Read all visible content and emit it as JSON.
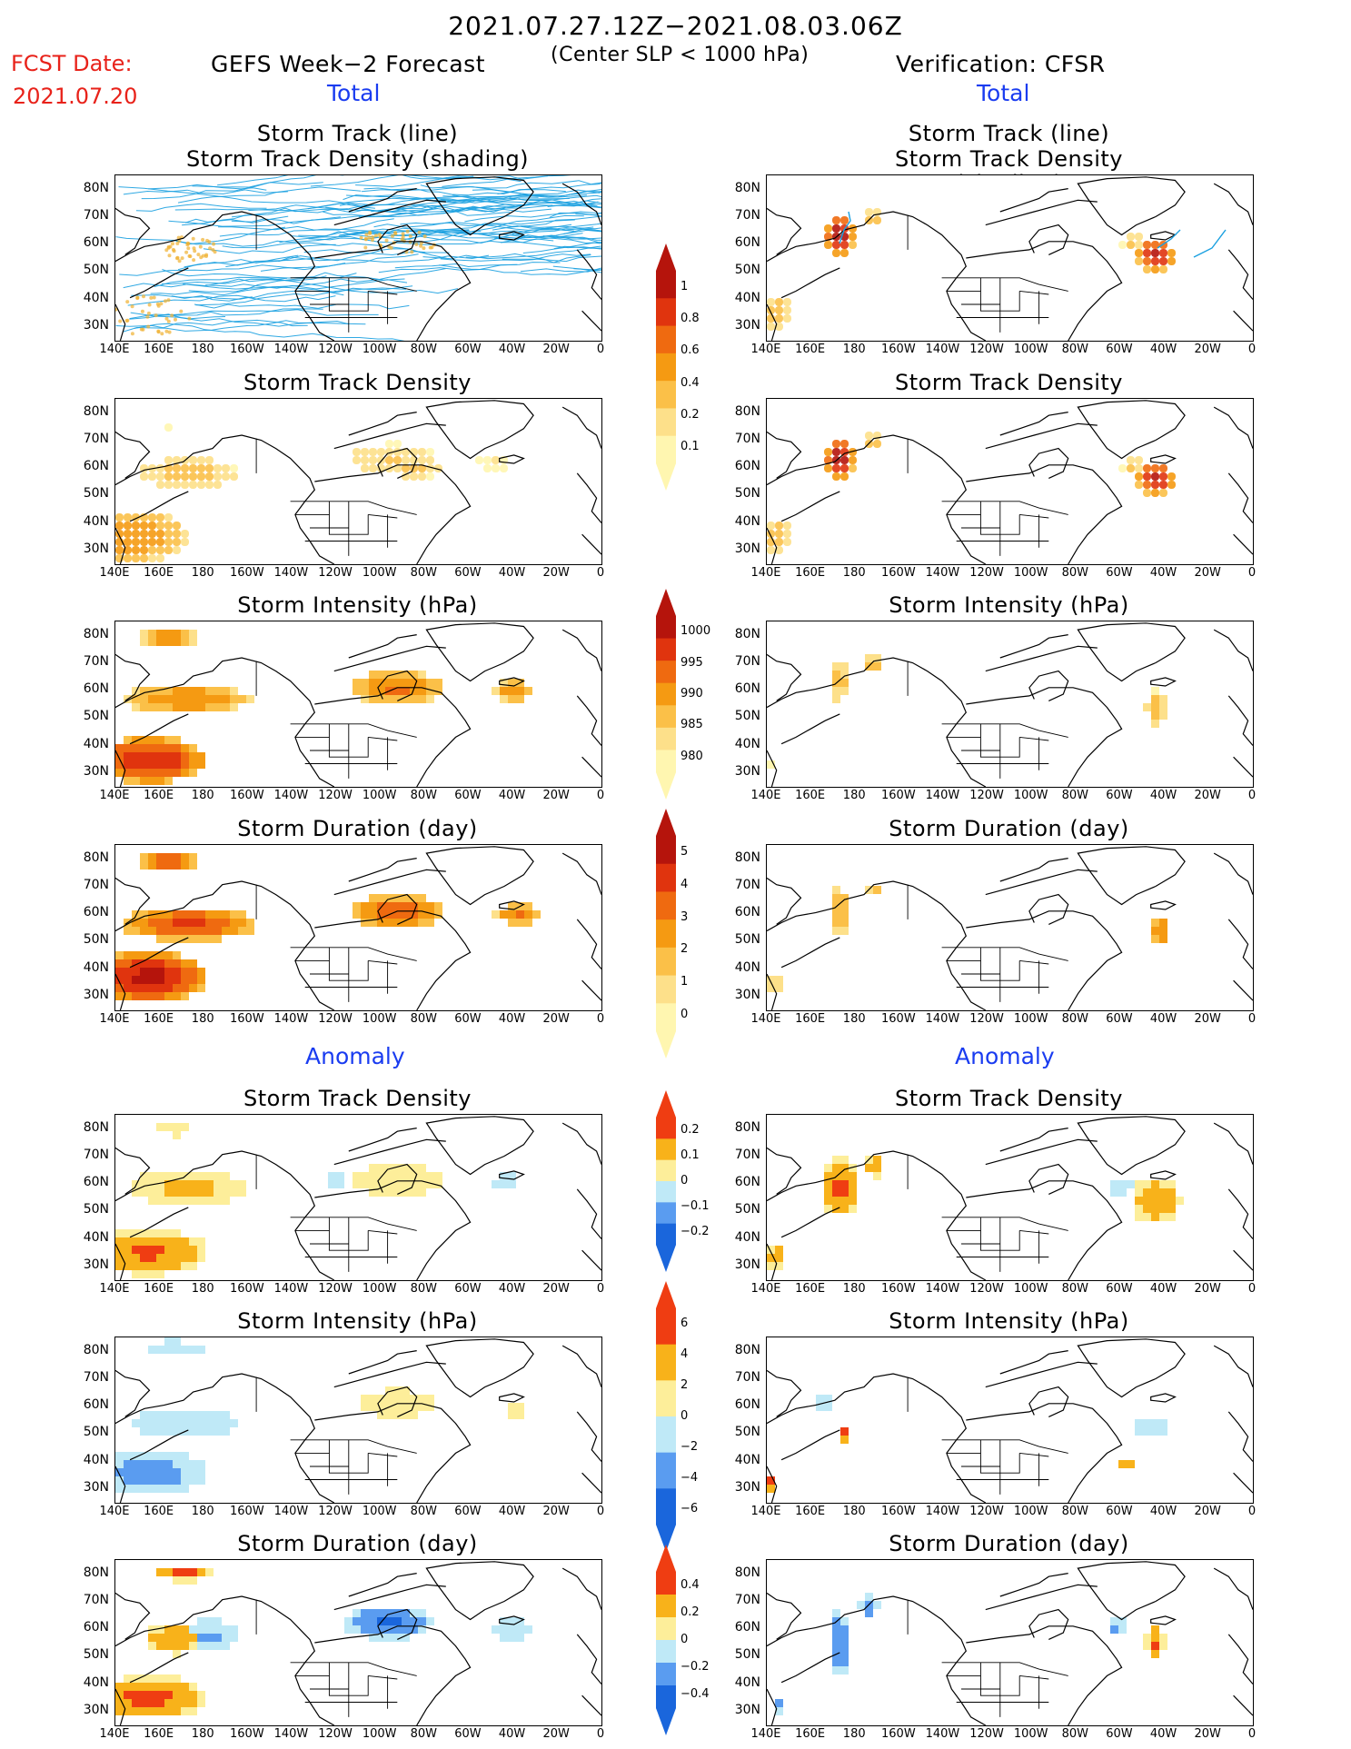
{
  "header": {
    "period": "2021.07.27.12Z−2021.08.03.06Z",
    "criterion": "(Center SLP < 1000 hPa)",
    "fcst_label": "FCST Date:",
    "fcst_date": "2021.07.20",
    "left_model": "GEFS Week−2 Forecast",
    "right_model": "Verification: CFSR",
    "total_left": "Total",
    "total_right": "Total",
    "anomaly_left": "Anomaly",
    "anomaly_right": "Anomaly"
  },
  "titles": {
    "track_line": "Storm Track (line)",
    "track_shading": "Storm Track Density (shading)",
    "density": "Storm Track Density",
    "intensity": "Storm Intensity (hPa)",
    "duration": "Storm Duration (day)"
  },
  "axes": {
    "lat_labels": [
      "80N",
      "70N",
      "60N",
      "50N",
      "40N",
      "30N"
    ],
    "lon_labels": [
      "140E",
      "160E",
      "180",
      "160W",
      "140W",
      "120W",
      "100W",
      "80W",
      "60W",
      "40W",
      "20W",
      "0"
    ]
  },
  "colorbars": {
    "density_total": [
      "1",
      "0.8",
      "0.6",
      "0.4",
      "0.2",
      "0.1"
    ],
    "intensity_total": [
      "1000",
      "995",
      "990",
      "985",
      "980"
    ],
    "duration_total": [
      "5",
      "4",
      "3",
      "2",
      "1",
      "0"
    ],
    "density_anom": [
      "0.2",
      "0.1",
      "0",
      "−0.1",
      "−0.2"
    ],
    "intensity_anom": [
      "6",
      "4",
      "2",
      "0",
      "−2",
      "−4",
      "−6"
    ],
    "duration_anom": [
      "0.4",
      "0.2",
      "0",
      "−0.2",
      "−0.4"
    ]
  },
  "colors": {
    "track_line": "#1aa0e0",
    "seq": [
      "#fff6b0",
      "#fde08a",
      "#fbc048",
      "#f59a12",
      "#ef6a10",
      "#e0340e",
      "#b5140c"
    ],
    "div": [
      "#1a66dc",
      "#5a9cf0",
      "#bfe9f7",
      "#ffffff",
      "#fdee9a",
      "#f8b21a",
      "#ef3d12"
    ]
  }
}
